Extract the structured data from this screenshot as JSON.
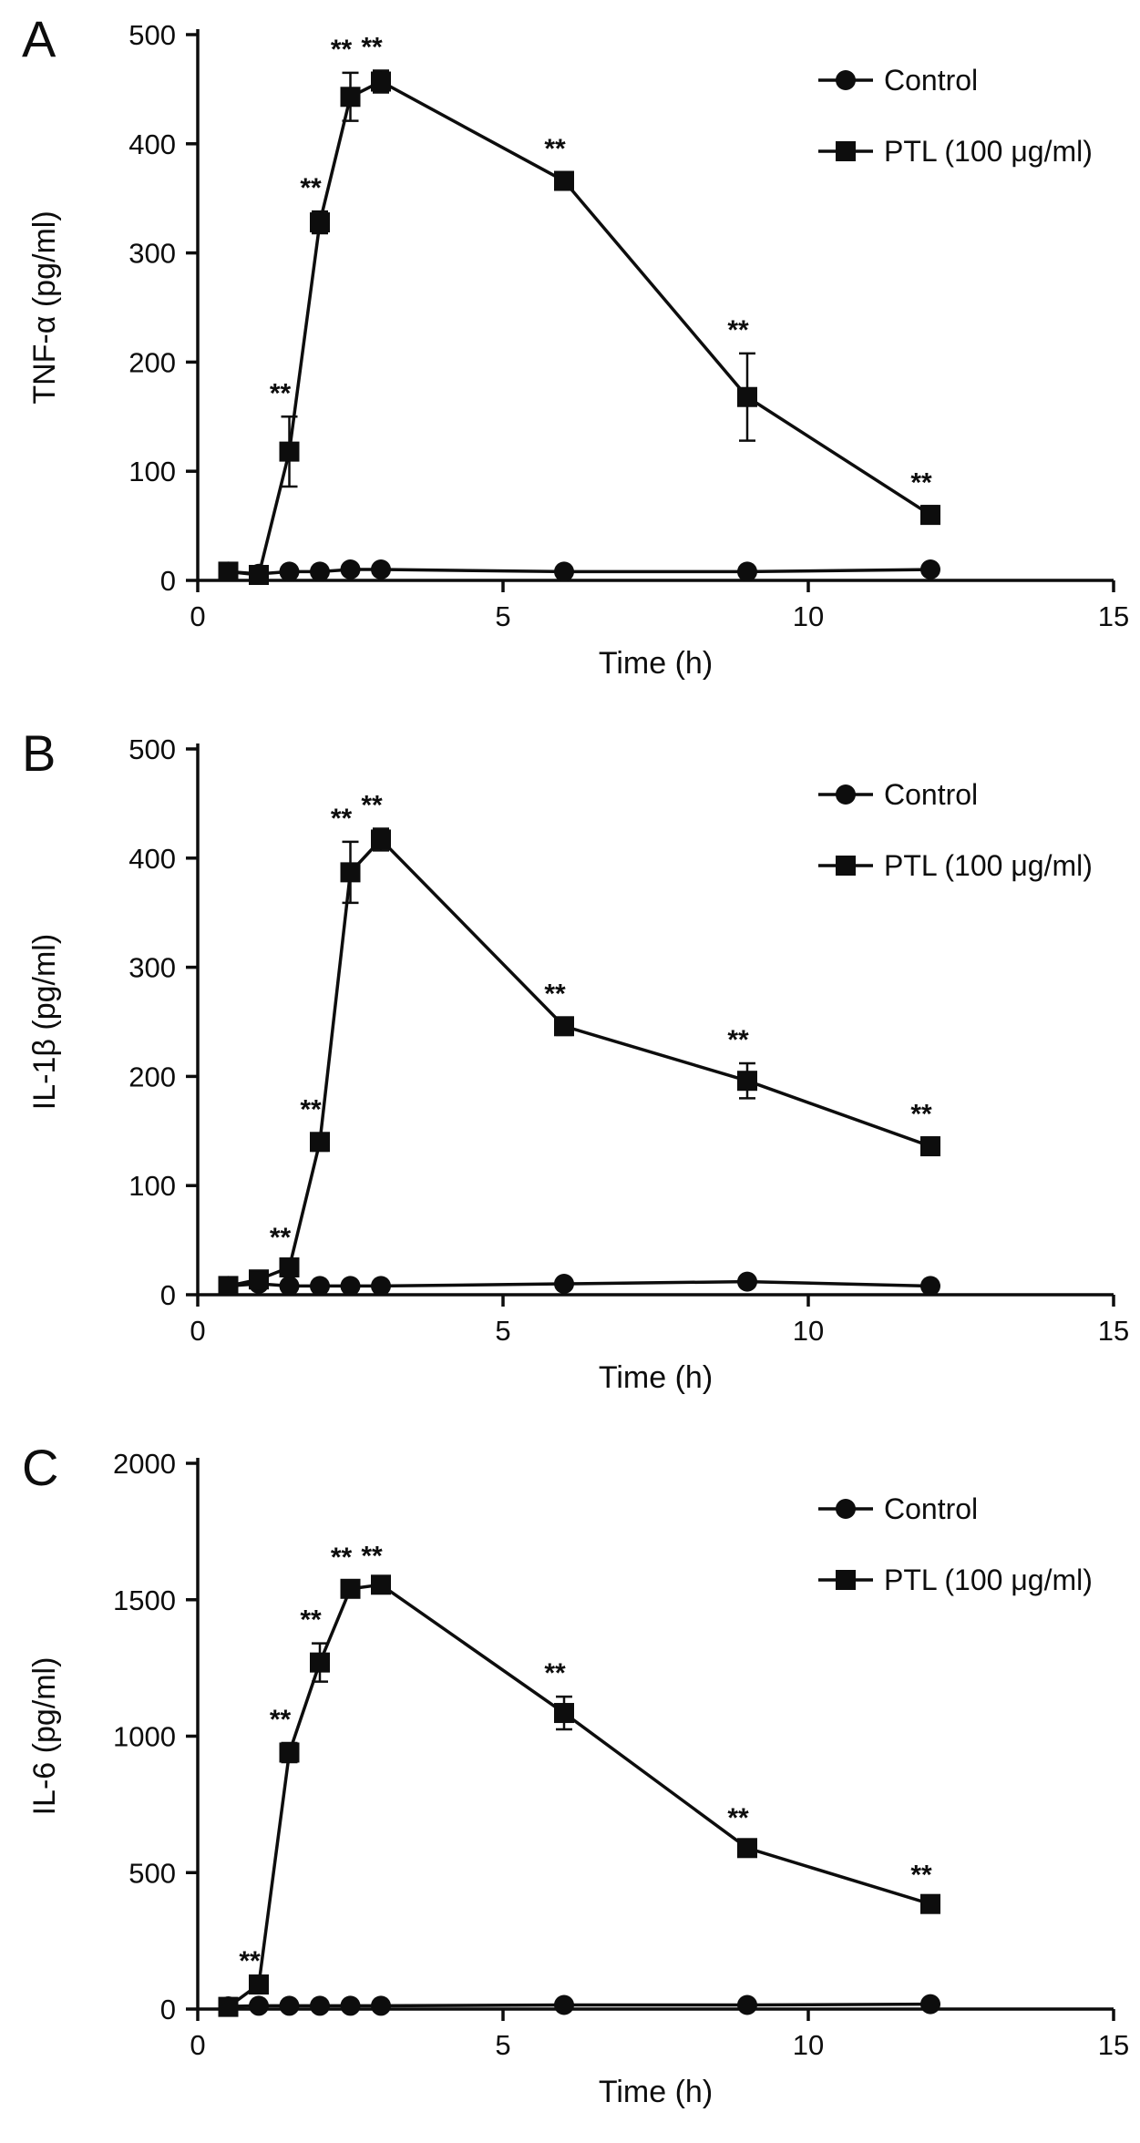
{
  "figure": {
    "ink_color": "#0d0d0d",
    "background_color": "#ffffff"
  },
  "chart_data": [
    {
      "type": "line",
      "panel_label": "A",
      "title": "",
      "xlabel": "Time (h)",
      "ylabel": "TNF-α (pg/ml)",
      "xlim": [
        0,
        15
      ],
      "ylim": [
        0,
        500
      ],
      "xticks": [
        0,
        5,
        10,
        15
      ],
      "yticks": [
        0,
        100,
        200,
        300,
        400,
        500
      ],
      "grid": false,
      "legend_position": "top-right",
      "series": [
        {
          "name": "Control",
          "marker": "circle",
          "color": "#0d0d0d",
          "x": [
            0.5,
            1,
            1.5,
            2,
            2.5,
            3,
            6,
            9,
            12
          ],
          "y": [
            8,
            6,
            8,
            8,
            10,
            10,
            8,
            8,
            10
          ],
          "err": [
            0,
            0,
            0,
            0,
            0,
            0,
            0,
            0,
            0
          ],
          "sig": [
            "",
            "",
            "",
            "",
            "",
            "",
            "",
            "",
            ""
          ]
        },
        {
          "name": "PTL (100 μg/ml)",
          "marker": "square",
          "color": "#0d0d0d",
          "x": [
            0.5,
            1,
            1.5,
            2,
            2.5,
            3,
            6,
            9,
            12
          ],
          "y": [
            8,
            5,
            118,
            328,
            443,
            457,
            366,
            168,
            60
          ],
          "err": [
            0,
            0,
            32,
            10,
            22,
            10,
            8,
            40,
            8
          ],
          "sig": [
            "",
            "",
            "**",
            "**",
            "**",
            "**",
            "**",
            "**",
            "**"
          ]
        }
      ]
    },
    {
      "type": "line",
      "panel_label": "B",
      "title": "",
      "xlabel": "Time (h)",
      "ylabel": "IL-1β (pg/ml)",
      "xlim": [
        0,
        15
      ],
      "ylim": [
        0,
        500
      ],
      "xticks": [
        0,
        5,
        10,
        15
      ],
      "yticks": [
        0,
        100,
        200,
        300,
        400,
        500
      ],
      "grid": false,
      "legend_position": "top-right",
      "series": [
        {
          "name": "Control",
          "marker": "circle",
          "color": "#0d0d0d",
          "x": [
            0.5,
            1,
            1.5,
            2,
            2.5,
            3,
            6,
            9,
            12
          ],
          "y": [
            8,
            10,
            8,
            8,
            8,
            8,
            10,
            12,
            8
          ],
          "err": [
            0,
            0,
            0,
            0,
            0,
            0,
            0,
            0,
            0
          ],
          "sig": [
            "",
            "",
            "",
            "",
            "",
            "",
            "",
            "",
            ""
          ]
        },
        {
          "name": "PTL (100 μg/ml)",
          "marker": "square",
          "color": "#0d0d0d",
          "x": [
            0.5,
            1,
            1.5,
            2,
            2.5,
            3,
            6,
            9,
            12
          ],
          "y": [
            8,
            14,
            25,
            140,
            387,
            417,
            246,
            196,
            136
          ],
          "err": [
            0,
            0,
            6,
            8,
            28,
            10,
            8,
            16,
            8
          ],
          "sig": [
            "",
            "",
            "**",
            "**",
            "**",
            "**",
            "**",
            "**",
            "**"
          ]
        }
      ]
    },
    {
      "type": "line",
      "panel_label": "C",
      "title": "",
      "xlabel": "Time (h)",
      "ylabel": "IL-6 (pg/ml)",
      "xlim": [
        0,
        15
      ],
      "ylim": [
        0,
        2000
      ],
      "xticks": [
        0,
        5,
        10,
        15
      ],
      "yticks": [
        0,
        500,
        1000,
        1500,
        2000
      ],
      "grid": false,
      "legend_position": "top-right",
      "series": [
        {
          "name": "Control",
          "marker": "circle",
          "color": "#0d0d0d",
          "x": [
            0.5,
            1,
            1.5,
            2,
            2.5,
            3,
            6,
            9,
            12
          ],
          "y": [
            10,
            12,
            12,
            12,
            12,
            12,
            15,
            15,
            18
          ],
          "err": [
            0,
            0,
            0,
            0,
            0,
            0,
            0,
            0,
            0
          ],
          "sig": [
            "",
            "",
            "",
            "",
            "",
            "",
            "",
            "",
            ""
          ]
        },
        {
          "name": "PTL (100 μg/ml)",
          "marker": "square",
          "color": "#0d0d0d",
          "x": [
            0.5,
            1,
            1.5,
            2,
            2.5,
            3,
            6,
            9,
            12
          ],
          "y": [
            8,
            90,
            940,
            1270,
            1540,
            1555,
            1085,
            590,
            385
          ],
          "err": [
            0,
            0,
            35,
            70,
            30,
            20,
            60,
            25,
            20
          ],
          "sig": [
            "",
            "**",
            "**",
            "**",
            "**",
            "**",
            "**",
            "**",
            "**"
          ]
        }
      ]
    }
  ]
}
